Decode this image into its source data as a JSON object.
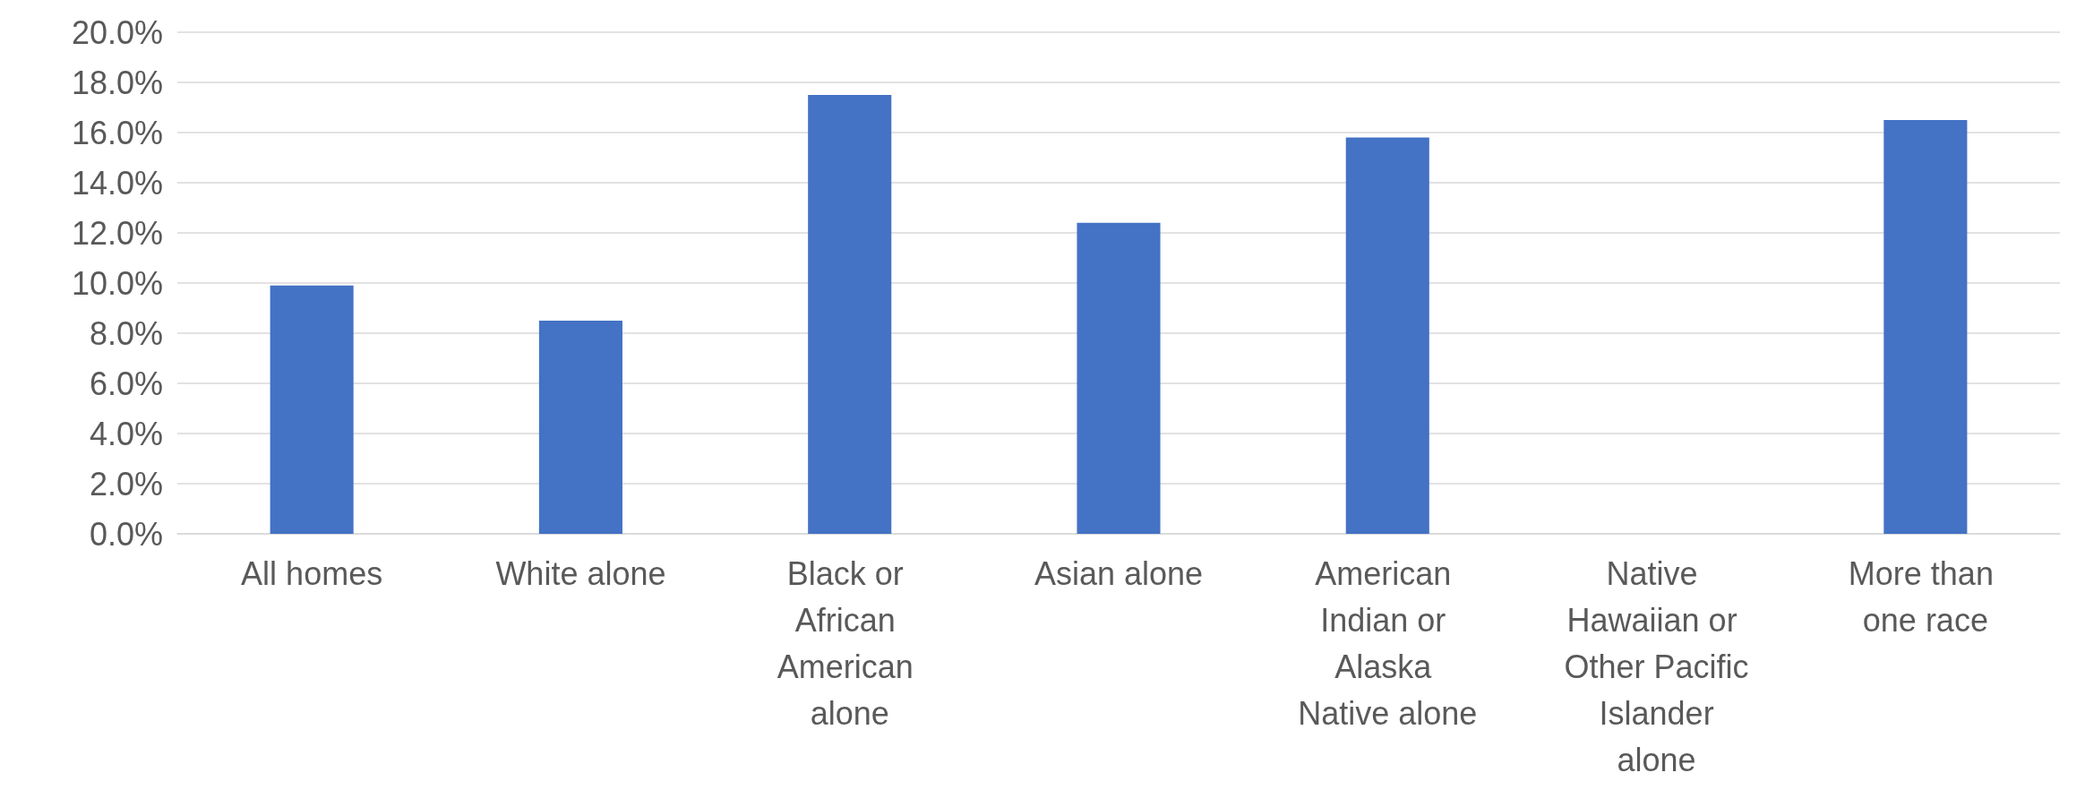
{
  "chart_data": {
    "type": "bar",
    "categories": [
      "All homes",
      "White alone",
      "Black or African American alone",
      "Asian alone",
      "American Indian or Alaska Native alone",
      "Native Hawaiian or Other Pacific Islander alone",
      "More than one race"
    ],
    "values": [
      9.9,
      8.5,
      17.5,
      12.4,
      15.8,
      null,
      16.5
    ],
    "color": "#4472c4",
    "ylim": [
      0,
      20
    ],
    "yticks": [
      {
        "value": 0,
        "label": "0.0%"
      },
      {
        "value": 2,
        "label": "2.0%"
      },
      {
        "value": 4,
        "label": "4.0%"
      },
      {
        "value": 6,
        "label": "6.0%"
      },
      {
        "value": 8,
        "label": "8.0%"
      },
      {
        "value": 10,
        "label": "10.0%"
      },
      {
        "value": 12,
        "label": "12.0%"
      },
      {
        "value": 14,
        "label": "14.0%"
      },
      {
        "value": 16,
        "label": "16.0%"
      },
      {
        "value": 18,
        "label": "18.0%"
      },
      {
        "value": 20,
        "label": "20.0%"
      }
    ],
    "grid": "y"
  }
}
